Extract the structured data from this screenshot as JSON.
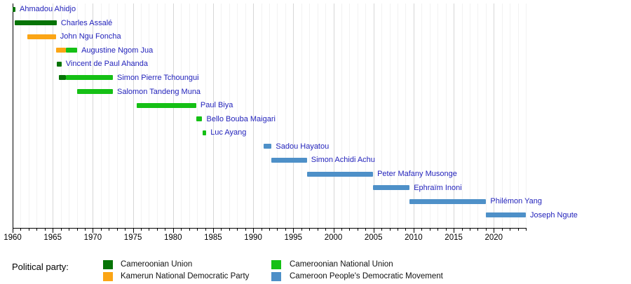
{
  "chart_data": {
    "type": "bar",
    "variant": "gantt-timeline",
    "description": "Timeline of Cameroon prime ministers by political party",
    "axis": {
      "min": 1960,
      "max": 2024,
      "major_tick_step": 5,
      "minor_tick_step": 1,
      "major_tick_labels": [
        "1960",
        "1965",
        "1970",
        "1975",
        "1980",
        "1985",
        "1990",
        "1995",
        "2000",
        "2005",
        "2010",
        "2015",
        "2020"
      ],
      "grid": true
    },
    "name_color": "#2323bb",
    "parties": {
      "cu": {
        "label": "Cameroonian Union",
        "color": "#067406"
      },
      "kndp": {
        "label": "Kamerun National Democratic Party",
        "color": "#fba515"
      },
      "cnu": {
        "label": "Cameroonian National Union",
        "color": "#15c015"
      },
      "cpdm": {
        "label": "Cameroon People's Democratic Movement",
        "color": "#4e90c8"
      }
    },
    "people": [
      {
        "name": "Ahmadou Ahidjo",
        "segments": [
          {
            "party": "cu",
            "start": 1960.0,
            "end": 1960.35
          }
        ]
      },
      {
        "name": "Charles Assalé",
        "segments": [
          {
            "party": "cu",
            "start": 1960.3,
            "end": 1965.5
          }
        ]
      },
      {
        "name": "John Ngu Foncha",
        "segments": [
          {
            "party": "kndp",
            "start": 1961.8,
            "end": 1965.4
          }
        ]
      },
      {
        "name": "Augustine Ngom Jua",
        "segments": [
          {
            "party": "kndp",
            "start": 1965.4,
            "end": 1966.67
          },
          {
            "party": "cnu",
            "start": 1966.67,
            "end": 1968.05
          }
        ]
      },
      {
        "name": "Vincent de Paul Ahanda",
        "segments": [
          {
            "party": "cu",
            "start": 1965.5,
            "end": 1966.1
          }
        ]
      },
      {
        "name": "Simon Pierre Tchoungui",
        "segments": [
          {
            "party": "cu",
            "start": 1965.8,
            "end": 1966.67
          },
          {
            "party": "cnu",
            "start": 1966.67,
            "end": 1972.5
          }
        ]
      },
      {
        "name": "Salomon Tandeng Muna",
        "segments": [
          {
            "party": "cnu",
            "start": 1968.0,
            "end": 1972.5
          }
        ]
      },
      {
        "name": "Paul Biya",
        "segments": [
          {
            "party": "cnu",
            "start": 1975.5,
            "end": 1982.9
          }
        ]
      },
      {
        "name": "Bello Bouba Maigari",
        "segments": [
          {
            "party": "cnu",
            "start": 1982.9,
            "end": 1983.65
          }
        ]
      },
      {
        "name": "Luc Ayang",
        "segments": [
          {
            "party": "cnu",
            "start": 1983.65,
            "end": 1984.15
          }
        ]
      },
      {
        "name": "Sadou Hayatou",
        "segments": [
          {
            "party": "cpdm",
            "start": 1991.3,
            "end": 1992.3
          }
        ]
      },
      {
        "name": "Simon Achidi Achu",
        "segments": [
          {
            "party": "cpdm",
            "start": 1992.3,
            "end": 1996.7
          }
        ]
      },
      {
        "name": "Peter Mafany Musonge",
        "segments": [
          {
            "party": "cpdm",
            "start": 1996.7,
            "end": 2004.95
          }
        ]
      },
      {
        "name": "Ephraïm Inoni",
        "segments": [
          {
            "party": "cpdm",
            "start": 2004.95,
            "end": 2009.5
          }
        ]
      },
      {
        "name": "Philémon Yang",
        "segments": [
          {
            "party": "cpdm",
            "start": 2009.5,
            "end": 2019.05
          }
        ]
      },
      {
        "name": "Joseph Ngute",
        "segments": [
          {
            "party": "cpdm",
            "start": 2019.05,
            "end": 2024.0
          }
        ]
      }
    ],
    "legend": {
      "title": "Political party:",
      "columns": [
        {
          "items": [
            "cu",
            "kndp"
          ]
        },
        {
          "items": [
            "cnu",
            "cpdm"
          ]
        }
      ]
    }
  }
}
